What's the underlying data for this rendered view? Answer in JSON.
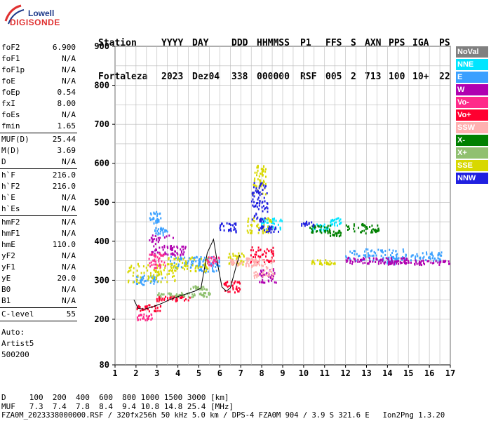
{
  "logo": {
    "line1": "Lowell",
    "line2": "DIGISONDE"
  },
  "header": {
    "row1": [
      "Station",
      "YYYY",
      "DAY",
      "DDD",
      "HHMMSS",
      "P1",
      "FFS",
      "S",
      "AXN",
      "PPS",
      "IGA",
      "PS"
    ],
    "row2": [
      "Fortaleza",
      "2023",
      "Dez04",
      "338",
      "000000",
      "RSF",
      "005",
      "2",
      "713",
      "100",
      "10+",
      "22"
    ]
  },
  "params": [
    {
      "group": [
        [
          "foF2",
          "6.900"
        ],
        [
          "foF1",
          "N/A"
        ],
        [
          "foF1p",
          "N/A"
        ],
        [
          "foE",
          "N/A"
        ],
        [
          "foEp",
          "0.54"
        ],
        [
          "fxI",
          "8.00"
        ],
        [
          "foEs",
          "N/A"
        ],
        [
          "fmin",
          "1.65"
        ]
      ]
    },
    {
      "group": [
        [
          "MUF(D)",
          "25.44"
        ],
        [
          "M(D)",
          "3.69"
        ],
        [
          "D",
          "N/A"
        ]
      ]
    },
    {
      "group": [
        [
          "h`F",
          "216.0"
        ],
        [
          "h`F2",
          "216.0"
        ],
        [
          "h`E",
          "N/A"
        ],
        [
          "h`Es",
          "N/A"
        ]
      ]
    },
    {
      "group": [
        [
          "hmF2",
          "N/A"
        ],
        [
          "hmF1",
          "N/A"
        ],
        [
          "hmE",
          "110.0"
        ],
        [
          "yF2",
          "N/A"
        ],
        [
          "yF1",
          "N/A"
        ],
        [
          "yE",
          "20.0"
        ],
        [
          "B0",
          "N/A"
        ],
        [
          "B1",
          "N/A"
        ]
      ]
    },
    {
      "group": [
        [
          "C-level",
          "55"
        ]
      ]
    }
  ],
  "auto": {
    "l1": "Auto:",
    "l2": "Artist5",
    "l3": "500200"
  },
  "legend": [
    {
      "label": "NoVal",
      "color": "#808080"
    },
    {
      "label": "NNE",
      "color": "#00e5ff"
    },
    {
      "label": "E",
      "color": "#3aa0ff"
    },
    {
      "label": "W",
      "color": "#b000b0"
    },
    {
      "label": "Vo-",
      "color": "#ff2a8a"
    },
    {
      "label": "Vo+",
      "color": "#ff0030"
    },
    {
      "label": "SSW",
      "color": "#ffb0b0"
    },
    {
      "label": "X-",
      "color": "#008000"
    },
    {
      "label": "X+",
      "color": "#90c070"
    },
    {
      "label": "SSE",
      "color": "#d8d800"
    },
    {
      "label": "NNW",
      "color": "#2020e0"
    }
  ],
  "footer": {
    "d_row": "D     100  200  400  600  800 1000 1500 3000 [km]",
    "muf_row": "MUF   7.3  7.4  7.8  8.4  9.4 10.8 14.8 25.4 [MHz]",
    "file_row": "FZA0M_2023338000000.RSF / 320fx256h 50 kHz 5.0 km / DPS-4 FZA0M 904 / 3.9 S 321.6 E   Ion2Png 1.3.20"
  },
  "chart_data": {
    "type": "scatter",
    "xlim": [
      1,
      17
    ],
    "ylim": [
      80,
      900
    ],
    "x_ticks": [
      "1",
      "2",
      "3",
      "4",
      "5",
      "6",
      "7",
      "8",
      "9",
      "10",
      "11",
      "12",
      "13",
      "14",
      "15",
      "16",
      "17"
    ],
    "y_ticks": [
      "80",
      "200",
      "300",
      "400",
      "500",
      "600",
      "700",
      "800",
      "900"
    ],
    "y_tick_values": [
      80,
      200,
      300,
      400,
      500,
      600,
      700,
      800,
      900
    ],
    "grid": true,
    "legend_position": "right",
    "trace": {
      "x": [
        1.9,
        2.1,
        2.4,
        2.8,
        3.2,
        3.6,
        4.0,
        4.4,
        4.8,
        5.1,
        5.4,
        5.7,
        5.9,
        6.1,
        6.3,
        6.5,
        6.8,
        6.95
      ],
      "y": [
        250,
        228,
        226,
        232,
        240,
        250,
        258,
        265,
        272,
        280,
        370,
        405,
        340,
        283,
        272,
        280,
        340,
        365
      ]
    },
    "series": [
      {
        "name": "E",
        "color": "#3aa0ff",
        "clusters": [
          [
            2.9,
            460,
            0.3,
            15
          ],
          [
            3.2,
            425,
            0.3,
            10
          ],
          [
            2.6,
            300,
            0.7,
            12
          ],
          [
            4.5,
            345,
            0.9,
            15
          ],
          [
            5.5,
            340,
            0.5,
            20
          ],
          [
            13.5,
            365,
            1.5,
            15
          ],
          [
            14.2,
            350,
            0.3,
            10
          ],
          [
            15.8,
            360,
            0.8,
            12
          ]
        ]
      },
      {
        "name": "NNE",
        "color": "#00e5ff",
        "clusters": [
          [
            8.5,
            445,
            0.5,
            15
          ],
          [
            10.8,
            435,
            0.4,
            10
          ],
          [
            11.5,
            450,
            0.3,
            10
          ]
        ]
      },
      {
        "name": "SSE",
        "color": "#d8d800",
        "clusters": [
          [
            2.8,
            318,
            1.2,
            25
          ],
          [
            4.5,
            340,
            1.0,
            20
          ],
          [
            6.8,
            355,
            0.4,
            15
          ],
          [
            7.9,
            440,
            0.6,
            20
          ],
          [
            10.9,
            346,
            0.6,
            6
          ],
          [
            7.9,
            560,
            0.3,
            40
          ]
        ]
      },
      {
        "name": "W",
        "color": "#b000b0",
        "clusters": [
          [
            3.2,
            390,
            0.6,
            25
          ],
          [
            4.0,
            375,
            0.4,
            12
          ],
          [
            13.5,
            350,
            1.5,
            8
          ],
          [
            15.5,
            345,
            1.5,
            6
          ],
          [
            8.3,
            310,
            0.4,
            20
          ]
        ]
      },
      {
        "name": "Vo+",
        "color": "#ff0030",
        "clusters": [
          [
            2.6,
            228,
            0.6,
            8
          ],
          [
            3.8,
            252,
            0.8,
            6
          ],
          [
            6.6,
            282,
            0.4,
            15
          ],
          [
            8.0,
            365,
            0.6,
            20
          ]
        ]
      },
      {
        "name": "X-",
        "color": "#008000",
        "clusters": [
          [
            10.8,
            430,
            0.5,
            10
          ],
          [
            12.8,
            432,
            0.8,
            12
          ],
          [
            11.5,
            420,
            0.3,
            8
          ]
        ]
      },
      {
        "name": "X+",
        "color": "#90c070",
        "clusters": [
          [
            4.3,
            262,
            1.3,
            6
          ],
          [
            5.0,
            280,
            0.4,
            5
          ]
        ]
      },
      {
        "name": "NNW",
        "color": "#2020e0",
        "clusters": [
          [
            6.4,
            435,
            0.4,
            12
          ],
          [
            8.3,
            430,
            0.5,
            8
          ],
          [
            10.2,
            445,
            0.3,
            6
          ],
          [
            7.9,
            500,
            0.4,
            50
          ]
        ]
      },
      {
        "name": "SSW",
        "color": "#ffb0b0",
        "clusters": [
          [
            8.1,
            330,
            0.5,
            25
          ],
          [
            7.5,
            345,
            0.3,
            12
          ],
          [
            6.8,
            345,
            0.3,
            8
          ]
        ]
      },
      {
        "name": "Vo-",
        "color": "#ff2a8a",
        "clusters": [
          [
            3.0,
            350,
            0.4,
            20
          ],
          [
            5.7,
            348,
            0.3,
            12
          ],
          [
            2.4,
            205,
            0.4,
            8
          ]
        ]
      },
      {
        "name": "NoVal",
        "color": "#808080",
        "clusters": []
      }
    ]
  }
}
